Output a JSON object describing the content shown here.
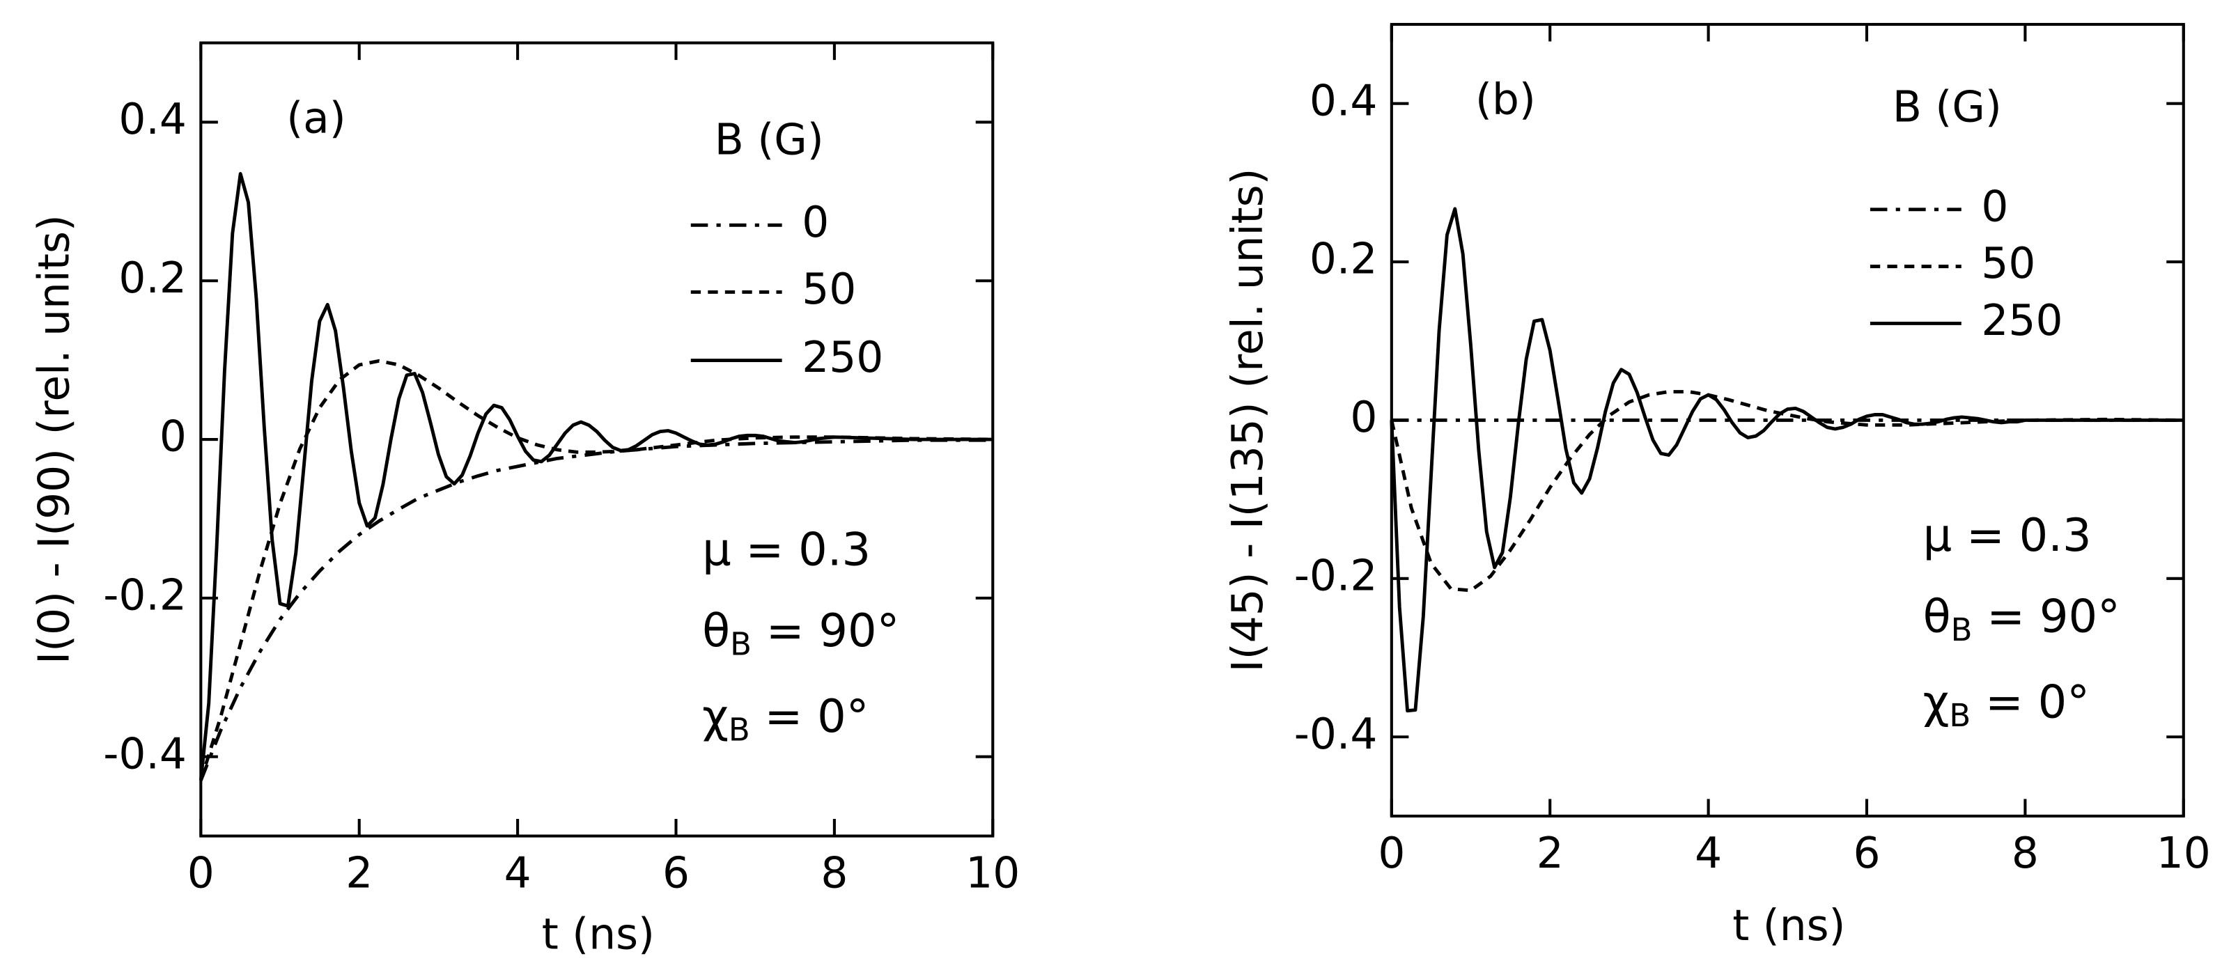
{
  "chart_data": [
    {
      "type": "line",
      "title": "(a)",
      "xlabel": "t (ns)",
      "ylabel": "I(0) - I(90) (rel. units)",
      "xlim": [
        0,
        10
      ],
      "ylim": [
        -0.5,
        0.5
      ],
      "xticks": [
        0,
        2,
        4,
        6,
        8,
        10
      ],
      "yticks": [
        -0.4,
        -0.2,
        0,
        0.2,
        0.4
      ],
      "legend_title": "B (G)",
      "series": [
        {
          "name": "0",
          "color": "#000000",
          "dash": "dash-dot",
          "x": [
            0,
            0.25,
            0.5,
            0.75,
            1,
            1.25,
            1.5,
            1.75,
            2,
            2.25,
            2.5,
            2.75,
            3,
            3.25,
            3.5,
            3.75,
            4,
            4.25,
            4.5,
            4.75,
            5,
            5.25,
            5.5,
            5.75,
            6,
            6.5,
            7,
            7.5,
            8,
            9,
            10
          ],
          "values": [
            -0.43,
            -0.367,
            -0.313,
            -0.267,
            -0.227,
            -0.194,
            -0.166,
            -0.141,
            -0.12,
            -0.103,
            -0.088,
            -0.074,
            -0.064,
            -0.054,
            -0.046,
            -0.039,
            -0.034,
            -0.029,
            -0.024,
            -0.021,
            -0.018,
            -0.015,
            -0.013,
            -0.011,
            -0.009,
            -0.007,
            -0.005,
            -0.004,
            -0.003,
            -0.001,
            -0.001
          ]
        },
        {
          "name": "50",
          "color": "#000000",
          "dash": "dash",
          "x": [
            0,
            0.25,
            0.5,
            0.75,
            1,
            1.25,
            1.5,
            1.75,
            2,
            2.25,
            2.5,
            2.75,
            3,
            3.25,
            3.5,
            3.75,
            4,
            4.25,
            4.5,
            4.75,
            5,
            5.25,
            5.5,
            5.75,
            6,
            6.5,
            7,
            7.5,
            8,
            9,
            10
          ],
          "values": [
            -0.43,
            -0.35,
            -0.258,
            -0.165,
            -0.081,
            -0.012,
            0.04,
            0.075,
            0.094,
            0.099,
            0.094,
            0.081,
            0.065,
            0.047,
            0.03,
            0.015,
            0.002,
            -0.007,
            -0.013,
            -0.016,
            -0.016,
            -0.015,
            -0.013,
            -0.01,
            -0.007,
            -0.001,
            0.002,
            0.003,
            0.003,
            0.001,
            0
          ]
        },
        {
          "name": "250",
          "color": "#000000",
          "dash": "solid",
          "x": [
            0,
            0.1,
            0.2,
            0.3,
            0.4,
            0.5,
            0.6,
            0.7,
            0.8,
            0.9,
            1,
            1.1,
            1.2,
            1.3,
            1.4,
            1.5,
            1.6,
            1.7,
            1.8,
            1.9,
            2,
            2.1,
            2.2,
            2.3,
            2.4,
            2.5,
            2.6,
            2.7,
            2.8,
            2.9,
            3,
            3.1,
            3.2,
            3.3,
            3.4,
            3.5,
            3.6,
            3.7,
            3.8,
            3.9,
            4,
            4.1,
            4.2,
            4.3,
            4.4,
            4.5,
            4.6,
            4.7,
            4.8,
            4.9,
            5,
            5.1,
            5.2,
            5.3,
            5.4,
            5.5,
            5.6,
            5.7,
            5.8,
            5.9,
            6,
            6.1,
            6.2,
            6.3,
            6.4,
            6.5,
            6.6,
            6.7,
            6.8,
            6.9,
            7,
            7.1,
            7.2,
            7.3,
            7.4,
            7.5,
            7.6,
            7.7,
            7.8,
            7.9,
            8,
            9,
            10
          ],
          "values": [
            -0.43,
            -0.333,
            -0.136,
            0.087,
            0.26,
            0.335,
            0.299,
            0.178,
            0.016,
            -0.126,
            -0.207,
            -0.21,
            -0.143,
            -0.035,
            0.074,
            0.149,
            0.17,
            0.137,
            0.066,
            -0.015,
            -0.08,
            -0.109,
            -0.099,
            -0.057,
            0,
            0.051,
            0.081,
            0.083,
            0.059,
            0.021,
            -0.019,
            -0.047,
            -0.056,
            -0.045,
            -0.021,
            0.008,
            0.032,
            0.043,
            0.04,
            0.025,
            0.004,
            -0.015,
            -0.026,
            -0.028,
            -0.02,
            -0.006,
            0.008,
            0.018,
            0.022,
            0.018,
            0.01,
            -0.001,
            -0.01,
            -0.014,
            -0.013,
            -0.008,
            -0.001,
            0.006,
            0.01,
            0.011,
            0.008,
            0.003,
            -0.002,
            -0.006,
            -0.007,
            -0.006,
            -0.003,
            0.001,
            0.004,
            0.005,
            0.005,
            0.004,
            0.001,
            -0.002,
            -0.003,
            -0.004,
            -0.003,
            -0.001,
            0.001,
            0.002,
            0.003,
            0,
            0
          ]
        }
      ],
      "annotations": [
        {
          "main": "μ = 0.3"
        },
        {
          "main": "θ",
          "sub": "B",
          "rest": " = 90°"
        },
        {
          "main": "χ",
          "sub": "B",
          "rest": " = 0°"
        }
      ]
    },
    {
      "type": "line",
      "title": "(b)",
      "xlabel": "t (ns)",
      "ylabel": "I(45) - I(135) (rel. units)",
      "xlim": [
        0,
        10
      ],
      "ylim": [
        -0.5,
        0.5
      ],
      "xticks": [
        0,
        2,
        4,
        6,
        8,
        10
      ],
      "yticks": [
        -0.4,
        -0.2,
        0,
        0.2,
        0.4
      ],
      "legend_title": "B (G)",
      "series": [
        {
          "name": "0",
          "color": "#000000",
          "dash": "dash-dot",
          "x": [
            0,
            10
          ],
          "values": [
            0,
            0
          ]
        },
        {
          "name": "50",
          "color": "#000000",
          "dash": "dash",
          "x": [
            0,
            0.25,
            0.5,
            0.75,
            1,
            1.25,
            1.5,
            1.75,
            2,
            2.25,
            2.5,
            2.75,
            3,
            3.25,
            3.5,
            3.75,
            4,
            4.25,
            4.5,
            4.75,
            5,
            5.25,
            5.5,
            5.75,
            6,
            6.5,
            7,
            7.5,
            8,
            9,
            10
          ],
          "values": [
            0,
            -0.111,
            -0.181,
            -0.213,
            -0.215,
            -0.197,
            -0.164,
            -0.126,
            -0.085,
            -0.049,
            -0.018,
            0.006,
            0.023,
            0.032,
            0.036,
            0.036,
            0.032,
            0.026,
            0.019,
            0.012,
            0.007,
            0.002,
            -0.002,
            -0.004,
            -0.006,
            -0.006,
            -0.004,
            -0.002,
            0,
            0.001,
            0
          ]
        },
        {
          "name": "250",
          "color": "#000000",
          "dash": "solid",
          "x": [
            0,
            0.1,
            0.2,
            0.3,
            0.4,
            0.5,
            0.6,
            0.7,
            0.8,
            0.9,
            1,
            1.1,
            1.2,
            1.3,
            1.4,
            1.5,
            1.6,
            1.7,
            1.8,
            1.9,
            2,
            2.1,
            2.2,
            2.3,
            2.4,
            2.5,
            2.6,
            2.7,
            2.8,
            2.9,
            3,
            3.1,
            3.2,
            3.3,
            3.4,
            3.5,
            3.6,
            3.7,
            3.8,
            3.9,
            4,
            4.1,
            4.2,
            4.3,
            4.4,
            4.5,
            4.6,
            4.7,
            4.8,
            4.9,
            5,
            5.1,
            5.2,
            5.3,
            5.4,
            5.5,
            5.6,
            5.7,
            5.8,
            5.9,
            6,
            6.1,
            6.2,
            6.3,
            6.4,
            6.5,
            6.6,
            6.7,
            6.8,
            6.9,
            7,
            7.1,
            7.2,
            7.3,
            7.4,
            7.5,
            7.6,
            7.7,
            7.8,
            7.9,
            8,
            9,
            10
          ],
          "values": [
            0,
            -0.236,
            -0.367,
            -0.366,
            -0.248,
            -0.067,
            0.113,
            0.234,
            0.267,
            0.21,
            0.094,
            -0.038,
            -0.141,
            -0.186,
            -0.167,
            -0.097,
            -0.005,
            0.077,
            0.125,
            0.127,
            0.088,
            0.027,
            -0.036,
            -0.079,
            -0.092,
            -0.074,
            -0.035,
            0.011,
            0.047,
            0.064,
            0.058,
            0.035,
            0.004,
            -0.025,
            -0.042,
            -0.044,
            -0.031,
            -0.01,
            0.011,
            0.027,
            0.032,
            0.026,
            0.013,
            -0.003,
            -0.016,
            -0.022,
            -0.02,
            -0.013,
            -0.002,
            0.008,
            0.014,
            0.015,
            0.011,
            0.004,
            -0.003,
            -0.009,
            -0.011,
            -0.009,
            -0.005,
            0.001,
            0.005,
            0.007,
            0.007,
            0.004,
            0.001,
            -0.003,
            -0.005,
            -0.005,
            -0.004,
            -0.002,
            0.001,
            0.003,
            0.004,
            0.003,
            0.002,
            0,
            -0.002,
            -0.003,
            -0.002,
            -0.002,
            0,
            0,
            0
          ]
        }
      ],
      "annotations": [
        {
          "main": "μ = 0.3"
        },
        {
          "main": "θ",
          "sub": "B",
          "rest": " = 90°"
        },
        {
          "main": "χ",
          "sub": "B",
          "rest": " = 0°"
        }
      ]
    }
  ]
}
